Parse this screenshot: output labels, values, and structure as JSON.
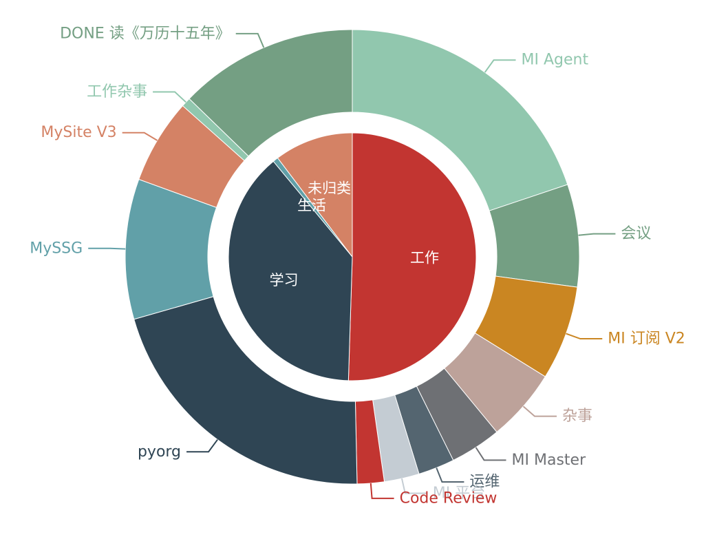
{
  "chart_data": {
    "type": "pie",
    "subtype": "nested-donut",
    "inner": [
      {
        "name": "工作",
        "value": 50.5,
        "color": "#c23531"
      },
      {
        "name": "学习",
        "value": 38.5,
        "color": "#2f4554"
      },
      {
        "name": "生活",
        "value": 0.7,
        "color": "#61a0a8"
      },
      {
        "name": "未归类",
        "value": 10.3,
        "color": "#d48265"
      }
    ],
    "outer": [
      {
        "name": "MI Agent",
        "value": 20.7,
        "color": "#91c7ae"
      },
      {
        "name": "会议",
        "value": 7.6,
        "color": "#749f83"
      },
      {
        "name": "MI 订阅 V2",
        "value": 7.0,
        "color": "#ca8622"
      },
      {
        "name": "杂事",
        "value": 5.4,
        "color": "#bda29a"
      },
      {
        "name": "MI Master",
        "value": 3.8,
        "color": "#6e7074"
      },
      {
        "name": "运维",
        "value": 2.7,
        "color": "#546570"
      },
      {
        "name": "MI 平台",
        "value": 2.6,
        "color": "#c4ccd3"
      },
      {
        "name": "Code Review",
        "value": 2.0,
        "color": "#c23531"
      },
      {
        "name": "pyorg",
        "value": 21.8,
        "color": "#2f4554"
      },
      {
        "name": "MySSG",
        "value": 10.4,
        "color": "#61a0a8"
      },
      {
        "name": "MySite V3",
        "value": 6.3,
        "color": "#d48265"
      },
      {
        "name": "工作杂事",
        "value": 0.7,
        "color": "#91c7ae"
      },
      {
        "name": "DONE 读《万历十五年》",
        "value": 13.3,
        "color": "#749f83"
      }
    ]
  }
}
